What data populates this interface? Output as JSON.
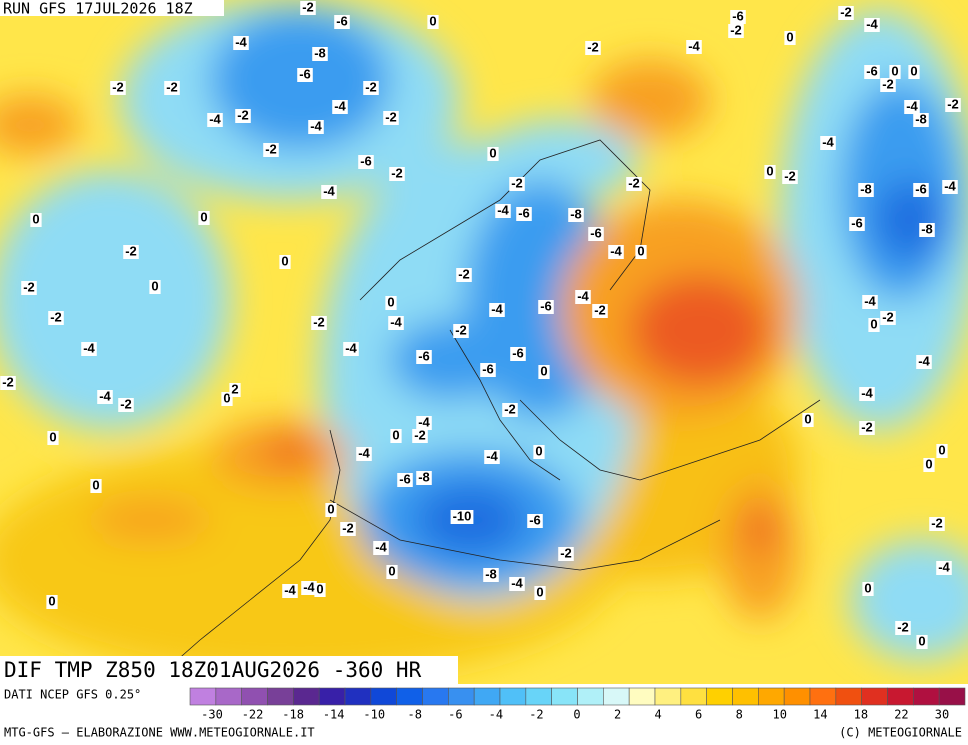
{
  "header": {
    "run": "RUN GFS 17JUL2026 18Z"
  },
  "footer": {
    "title": "DIF TMP Z850 18Z01AUG2026 -360 HR",
    "source": "DATI NCEP GFS 0.25°",
    "credit": "MTG-GFS – ELABORAZIONE WWW.METEOGIORNALE.IT",
    "copyright": "(C) METEOGIORNALE"
  },
  "legend": {
    "ticks": [
      -30,
      -22,
      -18,
      -14,
      -10,
      -8,
      -6,
      -4,
      -2,
      0,
      2,
      4,
      6,
      8,
      10,
      14,
      18,
      22,
      30
    ],
    "colors": [
      "#c080e0",
      "#a868c8",
      "#9050b0",
      "#784098",
      "#5a2890",
      "#3820a8",
      "#2030c0",
      "#1048d8",
      "#1060e8",
      "#2878f0",
      "#3890f0",
      "#40a8f4",
      "#50c0f8",
      "#68d4f8",
      "#88e4f8",
      "#b0f0f8",
      "#d8f8f8",
      "#fffcc0",
      "#fff080",
      "#ffe040",
      "#ffd000",
      "#ffc000",
      "#ffa800",
      "#ff9000",
      "#ff7010",
      "#f05010",
      "#e03020",
      "#c81830",
      "#b01040",
      "#981048"
    ]
  },
  "map": {
    "labels": [
      -2,
      -6,
      0,
      -4,
      -8,
      -2,
      -4,
      -6,
      -2,
      0,
      -2,
      -4,
      -6,
      -2,
      -2,
      -2,
      -6,
      0,
      0,
      -2,
      -4,
      -4,
      -2,
      -4,
      -2,
      -4,
      -2,
      -8,
      -2,
      -4,
      0,
      -6,
      -2,
      -4,
      0,
      -2,
      -2,
      -2,
      -4,
      -8,
      -6,
      0,
      0,
      -4,
      -6,
      -8,
      -6,
      -6,
      -8,
      -2,
      0,
      -4,
      0,
      -2,
      0,
      -2,
      -4,
      -6,
      0,
      -4,
      -2,
      -4,
      0,
      -2,
      -2,
      -2,
      -4,
      -2,
      -4,
      -4,
      -6,
      -6,
      -4,
      -6,
      0,
      -2,
      -4,
      -2,
      0,
      2,
      -4,
      -2,
      -4,
      0,
      -2,
      0,
      0,
      -2,
      -4,
      -4,
      0,
      0,
      0,
      0,
      -6,
      -8,
      0,
      -10,
      -6,
      -2,
      -2,
      -4,
      -2,
      0,
      -4,
      -8,
      -4,
      -4,
      -4,
      0,
      0,
      0,
      0,
      -2,
      0
    ]
  }
}
